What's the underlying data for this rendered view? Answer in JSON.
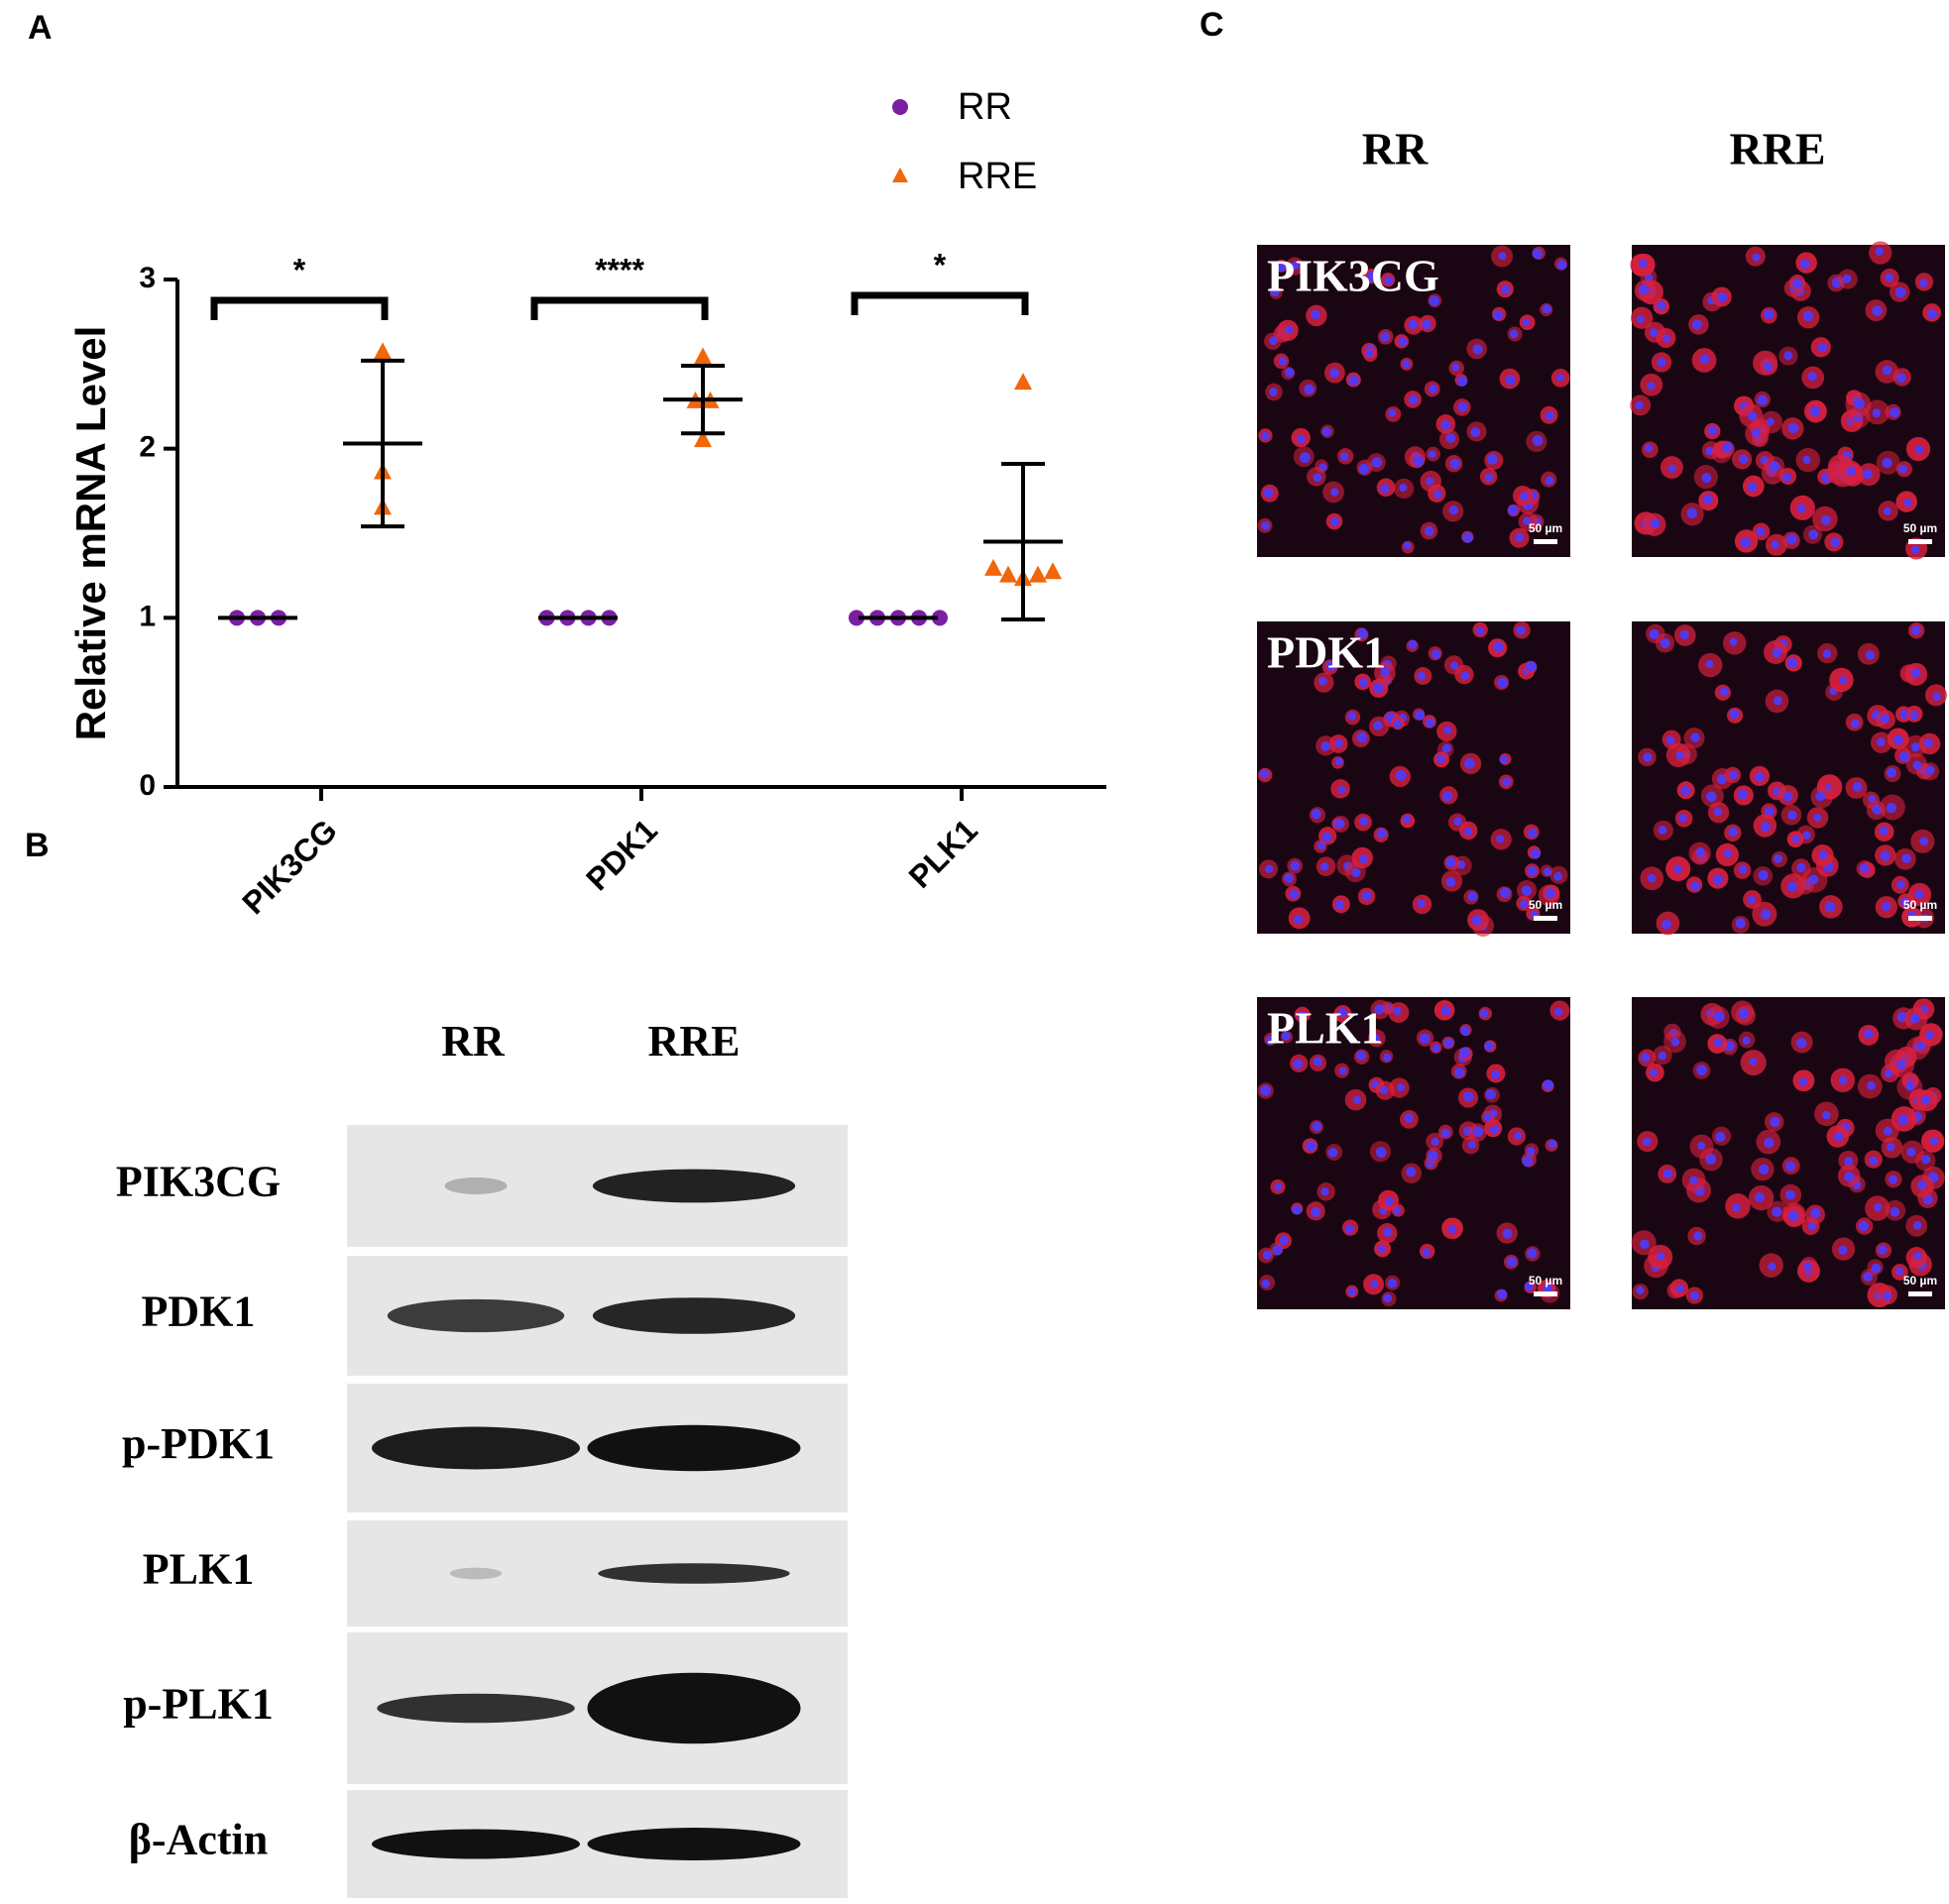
{
  "chart_data": {
    "type": "scatter",
    "panel": "A",
    "ylabel": "Relative mRNA Level",
    "categories": [
      "PIK3CG",
      "PDK1",
      "PLK1"
    ],
    "ylim": [
      0,
      3
    ],
    "yticks": [
      0,
      1,
      2,
      3
    ],
    "series": [
      {
        "name": "RR",
        "color": "#7b1fa2",
        "marker": "circle",
        "values": [
          [
            1,
            1,
            1
          ],
          [
            1,
            1,
            1,
            1
          ],
          [
            1,
            1,
            1,
            1,
            1
          ]
        ],
        "mean": [
          1,
          1,
          1
        ],
        "sd": [
          0,
          0,
          0
        ]
      },
      {
        "name": "RRE",
        "color": "#f0660a",
        "marker": "triangle",
        "values": [
          [
            2.57,
            1.86,
            1.65
          ],
          [
            2.54,
            2.28,
            2.28,
            2.05
          ],
          [
            2.39,
            1.29,
            1.25,
            1.23,
            1.25,
            1.27
          ]
        ],
        "mean": [
          2.03,
          2.29,
          1.45
        ],
        "sd": [
          0.49,
          0.2,
          0.46
        ]
      }
    ],
    "significance": [
      "*",
      "****",
      "*"
    ]
  },
  "panel_b": {
    "letter": "B",
    "columns": [
      "RR",
      "RRE"
    ],
    "rows": [
      "PIK3CG",
      "PDK1",
      "p-PDK1",
      "PLK1",
      "p-PLK1",
      "β-Actin"
    ]
  },
  "panel_c": {
    "letter": "C",
    "columns": [
      "RR",
      "RRE"
    ],
    "rows": [
      "PIK3CG",
      "PDK1",
      "PLK1"
    ],
    "scale_bar": "50 µm"
  }
}
